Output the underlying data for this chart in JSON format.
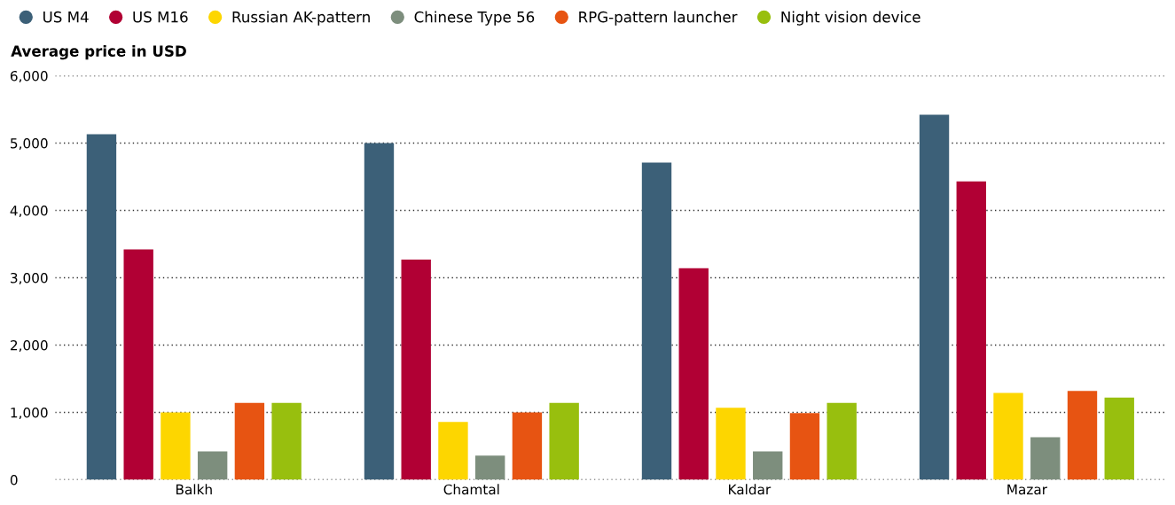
{
  "chart_data": {
    "type": "bar",
    "ylabel": "Average price in USD",
    "categories": [
      "Balkh",
      "Chamtal",
      "Kaldar",
      "Mazar"
    ],
    "series": [
      {
        "name": "US M4",
        "color": "#3c6078",
        "values": [
          5130,
          5000,
          4710,
          5420
        ]
      },
      {
        "name": "US M16",
        "color": "#b10034",
        "values": [
          3420,
          3270,
          3140,
          4430
        ]
      },
      {
        "name": "Russian AK-pattern",
        "color": "#fdd600",
        "values": [
          1000,
          860,
          1070,
          1290
        ]
      },
      {
        "name": "Chinese Type 56",
        "color": "#7d8e7d",
        "values": [
          420,
          360,
          420,
          630
        ]
      },
      {
        "name": "RPG-pattern launcher",
        "color": "#e75412",
        "values": [
          1140,
          1000,
          990,
          1320
        ]
      },
      {
        "name": "Night vision device",
        "color": "#98bf0e",
        "values": [
          1140,
          1140,
          1140,
          1220
        ]
      }
    ],
    "ylim": [
      0,
      6000
    ],
    "yticks": [
      {
        "value": 0,
        "label": "0"
      },
      {
        "value": 1000,
        "label": "1,000"
      },
      {
        "value": 2000,
        "label": "2,000"
      },
      {
        "value": 3000,
        "label": "3,000"
      },
      {
        "value": 4000,
        "label": "4,000"
      },
      {
        "value": 5000,
        "label": "5,000"
      },
      {
        "value": 6000,
        "label": "6,000"
      }
    ],
    "grid": "y",
    "legend": "top left"
  }
}
